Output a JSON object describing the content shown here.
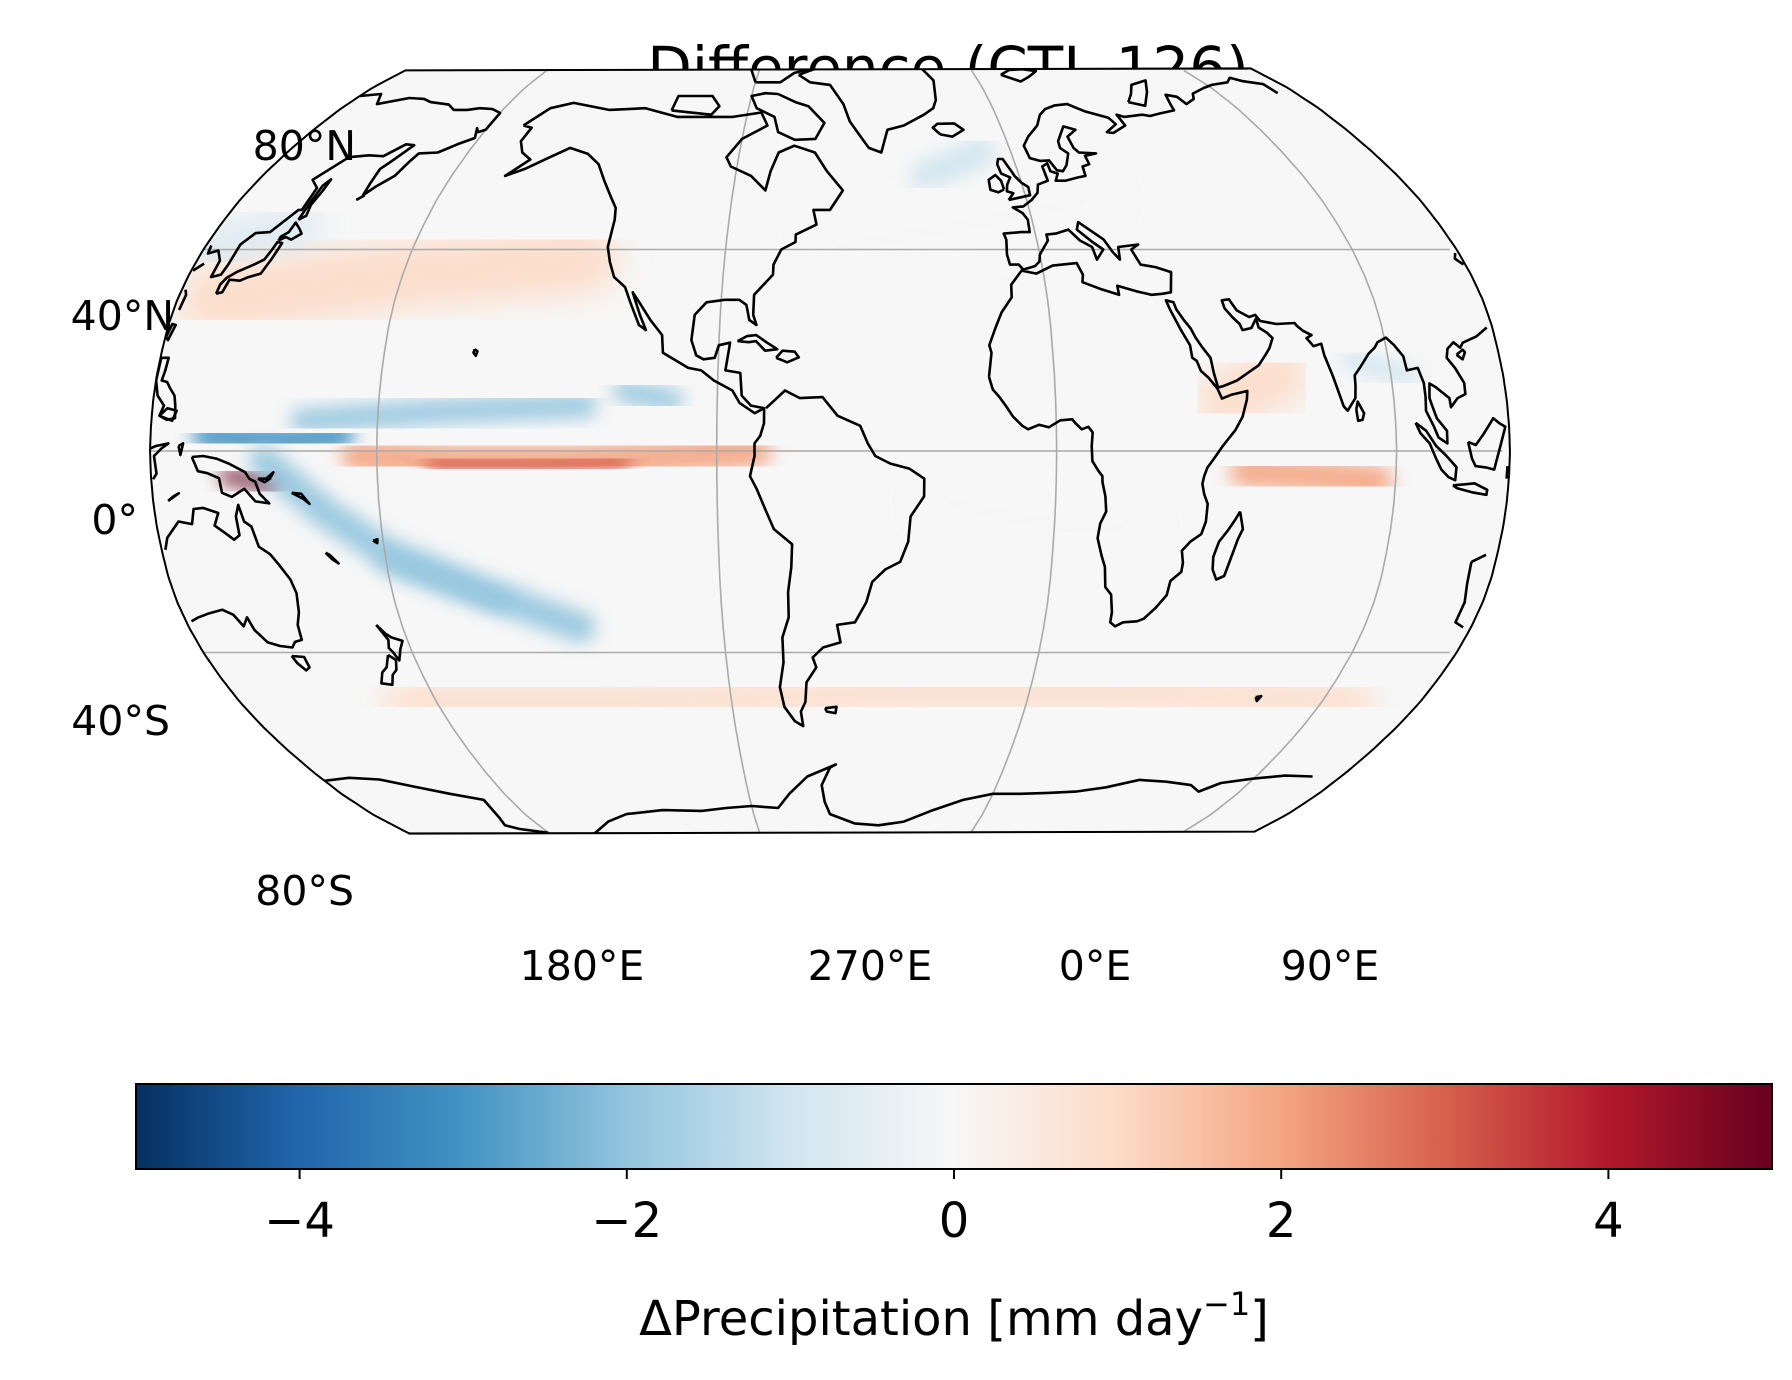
{
  "figure": {
    "title": "Difference (CTL-126)"
  },
  "map": {
    "projection": "Robinson",
    "central_longitude": 300,
    "lat_labels": [
      "80°N",
      "40°N",
      "0°",
      "40°S",
      "80°S"
    ],
    "lon_labels": [
      "180°E",
      "270°E",
      "0°E",
      "90°E"
    ],
    "gridlines": {
      "latitudes": [
        -80,
        -40,
        0,
        40,
        80
      ],
      "longitudes": [
        180,
        270,
        0,
        90
      ]
    },
    "colormap": "RdBu_r",
    "coastline_color": "#000000",
    "grid_color": "#aaaaaa",
    "features": [
      {
        "name": "eq-pacific-itcz-wet",
        "lon": 215,
        "lat": -1,
        "value": 2.4
      },
      {
        "name": "west-pacific-wet",
        "lon": 152,
        "lat": -6,
        "value": 4.6
      },
      {
        "name": "indian-ocean-wet",
        "lon": 70,
        "lat": -5,
        "value": 3.2
      },
      {
        "name": "west-pacific-dry",
        "lon": 160,
        "lat": 2,
        "value": -3.4
      },
      {
        "name": "north-itcz-dry",
        "lon": 210,
        "lat": 8,
        "value": -2.3
      },
      {
        "name": "spcz-dry",
        "lon": 200,
        "lat": -25,
        "value": -1.8
      },
      {
        "name": "north-atlantic-dry",
        "lon": 330,
        "lat": 58,
        "value": -1.1
      }
    ]
  },
  "colorbar": {
    "vmin": -5,
    "vmax": 5,
    "ticks": [
      "−4",
      "−2",
      "0",
      "2",
      "4"
    ],
    "tick_values": [
      -4,
      -2,
      0,
      2,
      4
    ],
    "label_main": "ΔPrecipitation [mm day",
    "label_sup": "−1",
    "label_end": "]"
  },
  "colors": {
    "rdbu_r": [
      "#053061",
      "#2166ac",
      "#4393c3",
      "#92c5de",
      "#d1e5f0",
      "#f7f7f7",
      "#fddbc7",
      "#f4a582",
      "#d6604d",
      "#b2182b",
      "#67001f"
    ],
    "background": "#f7f7f7"
  }
}
